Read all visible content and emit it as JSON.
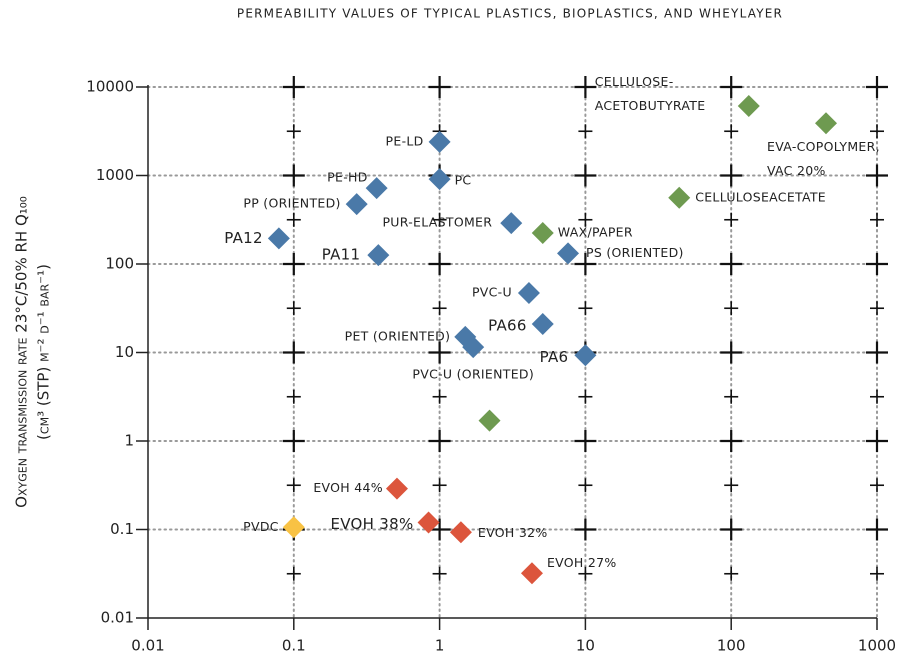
{
  "chart_data": {
    "type": "scatter",
    "title": "PERMEABILITY VALUES OF TYPICAL PLASTICS, BIOPLASTICS, AND WHEYLAYER",
    "y_label": [
      "Oxygen transmission rate 23°C/50% RH Q₁₀₀",
      "(cm³ (STP) m⁻² d⁻¹ bar⁻¹)"
    ],
    "log_x": true,
    "log_y": true,
    "grid": true,
    "xlim": [
      0.01,
      1000
    ],
    "ylim": [
      0.01,
      10000
    ],
    "xticks": [
      0.01,
      0.1,
      1,
      10,
      100,
      1000
    ],
    "yticks": [
      0.01,
      0.1,
      1,
      10,
      100,
      1000,
      10000
    ],
    "series": [
      {
        "color": "#4a79a8",
        "labels": [
          "PE-LD",
          "PC",
          "PE-HD",
          "PP (ORIENTED)",
          "PA12",
          "PA11",
          "PUR-ELASTOMER",
          "PS (ORIENTED)",
          "PVC-U",
          "PA66",
          "PET (ORIENTED)",
          "PVC-U (ORIENTED)",
          "PA6"
        ],
        "x": [
          1.0,
          1.0,
          0.37,
          0.27,
          0.079,
          0.38,
          3.1,
          7.6,
          4.1,
          5.1,
          1.5,
          1.7,
          10
        ],
        "y": [
          2400,
          910,
          720,
          475,
          195,
          126,
          290,
          132,
          47,
          21,
          15,
          11.5,
          9.3
        ]
      },
      {
        "color": "#6e9a50",
        "labels": [
          "CELLULOSE-ACETOBUTYRATE",
          "EVA-COPOLYMER, VAC 20%",
          "CELLULOSEACETATE",
          "WAX/PAPER",
          null
        ],
        "x": [
          132,
          447,
          44,
          5.1,
          2.2
        ],
        "y": [
          6100,
          3900,
          560,
          224,
          1.7
        ]
      },
      {
        "color": "#dc553c",
        "labels": [
          "EVOH 44%",
          "EVOH 38%",
          "EVOH 32%",
          "EVOH 27%"
        ],
        "x": [
          0.51,
          0.84,
          1.4,
          4.3
        ],
        "y": [
          0.29,
          0.12,
          0.093,
          0.032
        ]
      },
      {
        "color": "#f8c244",
        "labels": [
          "PVDC"
        ],
        "x": [
          0.1
        ],
        "y": [
          0.106
        ]
      }
    ]
  }
}
